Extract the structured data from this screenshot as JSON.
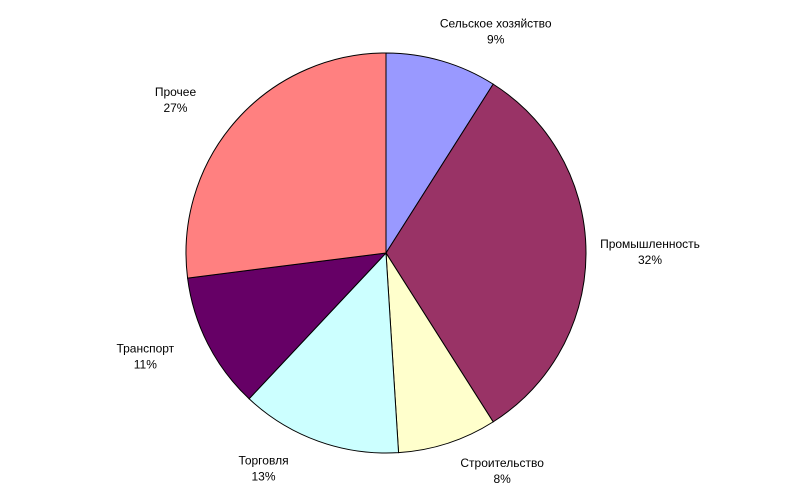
{
  "chart_data": {
    "type": "pie",
    "categories": [
      "Сельское хозяйство",
      "Промышленность",
      "Строительство",
      "Торговля",
      "Транспорт",
      "Прочее"
    ],
    "values": [
      9,
      32,
      8,
      13,
      11,
      27
    ],
    "value_labels": [
      "9%",
      "32%",
      "8%",
      "13%",
      "11%",
      "27%"
    ],
    "colors": [
      "#9999ff",
      "#993366",
      "#ffffcc",
      "#ccffff",
      "#660066",
      "#ff8080"
    ]
  }
}
